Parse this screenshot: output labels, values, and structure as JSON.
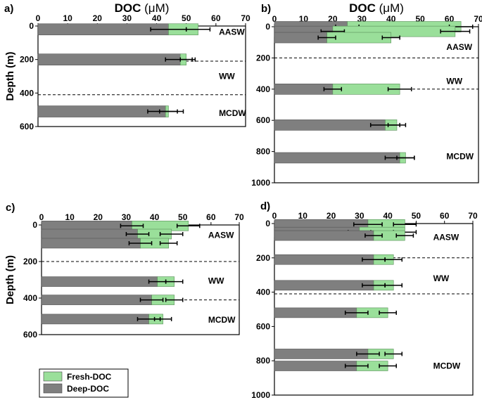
{
  "colors": {
    "fresh": "#9adf9a",
    "deep": "#7f7f7f",
    "axis": "#000000"
  },
  "legend": [
    {
      "label": "Fresh-DOC",
      "color": "#9adf9a"
    },
    {
      "label": "Deep-DOC",
      "color": "#7f7f7f"
    }
  ],
  "x_title_prefix": "DOC",
  "x_title_unit": "(μM)",
  "y_title": "Depth (m)",
  "chart_data": [
    {
      "panel": "a)",
      "type": "bar",
      "orientation": "horizontal",
      "stacked": true,
      "xlim": [
        0,
        70
      ],
      "ylim": [
        0,
        600
      ],
      "xticks": [
        0,
        10,
        20,
        30,
        40,
        50,
        60,
        70
      ],
      "yticks": [
        0,
        200,
        400,
        600
      ],
      "show_x_title": true,
      "show_y_title": true,
      "boundaries": [
        210,
        410
      ],
      "water_masses": [
        {
          "label": "AASW",
          "depth": 35
        },
        {
          "label": "WW",
          "depth": 300
        },
        {
          "label": "MCDW",
          "depth": 520
        }
      ],
      "bars": [
        {
          "depth": 20,
          "deep": 44,
          "fresh": 10,
          "err_deep": 6,
          "err_fresh": 4
        },
        {
          "depth": 200,
          "deep": 48,
          "fresh": 2,
          "err_deep": 5,
          "err_fresh": 2
        },
        {
          "depth": 510,
          "deep": 43,
          "fresh": 1,
          "err_deep": 6,
          "err_fresh": 3
        }
      ]
    },
    {
      "panel": "b)",
      "type": "bar",
      "orientation": "horizontal",
      "stacked": true,
      "xlim": [
        0,
        70
      ],
      "ylim": [
        0,
        1000
      ],
      "xticks": [
        0,
        10,
        20,
        30,
        40,
        50,
        60,
        70
      ],
      "yticks": [
        0,
        200,
        400,
        600,
        800,
        1000
      ],
      "show_x_title": true,
      "show_y_title": false,
      "boundaries": [
        200,
        400
      ],
      "water_masses": [
        {
          "label": "AASW",
          "depth": 130
        },
        {
          "label": "WW",
          "depth": 350
        },
        {
          "label": "MCDW",
          "depth": 830
        }
      ],
      "bars": [
        {
          "depth": 0,
          "deep": 25,
          "fresh": 39,
          "err_deep": 4,
          "err_fresh": 4
        },
        {
          "depth": 30,
          "deep": 20,
          "fresh": 42,
          "err_deep": 4,
          "err_fresh": 5
        },
        {
          "depth": 70,
          "deep": 18,
          "fresh": 22,
          "err_deep": 3,
          "err_fresh": 3
        },
        {
          "depth": 400,
          "deep": 20,
          "fresh": 23,
          "err_deep": 3,
          "err_fresh": 4
        },
        {
          "depth": 630,
          "deep": 38,
          "fresh": 4,
          "err_deep": 5,
          "err_fresh": 3
        },
        {
          "depth": 840,
          "deep": 43,
          "fresh": 2,
          "err_deep": 5,
          "err_fresh": 3
        }
      ]
    },
    {
      "panel": "c)",
      "type": "bar",
      "orientation": "horizontal",
      "stacked": true,
      "xlim": [
        0,
        70
      ],
      "ylim": [
        0,
        600
      ],
      "xticks": [
        0,
        10,
        20,
        30,
        40,
        50,
        60,
        70
      ],
      "yticks": [
        0,
        200,
        400,
        600
      ],
      "show_x_title": false,
      "show_y_title": true,
      "boundaries": [
        200,
        410
      ],
      "water_masses": [
        {
          "label": "AASW",
          "depth": 55
        },
        {
          "label": "WW",
          "depth": 305
        },
        {
          "label": "MCDW",
          "depth": 520
        }
      ],
      "bars": [
        {
          "depth": 5,
          "deep": 32,
          "fresh": 20,
          "err_deep": 4,
          "err_fresh": 4
        },
        {
          "depth": 50,
          "deep": 34,
          "fresh": 12,
          "err_deep": 4,
          "err_fresh": 4
        },
        {
          "depth": 100,
          "deep": 35,
          "fresh": 10,
          "err_deep": 4,
          "err_fresh": 3
        },
        {
          "depth": 310,
          "deep": 41,
          "fresh": 6,
          "err_deep": 3,
          "err_fresh": 3
        },
        {
          "depth": 410,
          "deep": 39,
          "fresh": 8,
          "err_deep": 4,
          "err_fresh": 3
        },
        {
          "depth": 515,
          "deep": 38,
          "fresh": 5,
          "err_deep": 4,
          "err_fresh": 3
        }
      ]
    },
    {
      "panel": "d)",
      "type": "bar",
      "orientation": "horizontal",
      "stacked": true,
      "xlim": [
        0,
        70
      ],
      "ylim": [
        0,
        1000
      ],
      "xticks": [
        0,
        10,
        20,
        30,
        40,
        50,
        60,
        70
      ],
      "yticks": [
        0,
        200,
        400,
        600,
        800,
        1000
      ],
      "show_x_title": false,
      "show_y_title": false,
      "boundaries": [
        200,
        410
      ],
      "water_masses": [
        {
          "label": "AASW",
          "depth": 80
        },
        {
          "label": "WW",
          "depth": 320
        },
        {
          "label": "MCDW",
          "depth": 830
        }
      ],
      "bars": [
        {
          "depth": 5,
          "deep": 33,
          "fresh": 13,
          "err_deep": 5,
          "err_fresh": 4
        },
        {
          "depth": 50,
          "deep": 30,
          "fresh": 16,
          "err_deep": 4,
          "err_fresh": 4
        },
        {
          "depth": 70,
          "deep": 35,
          "fresh": 11,
          "err_deep": 3,
          "err_fresh": 3
        },
        {
          "depth": 210,
          "deep": 35,
          "fresh": 7,
          "err_deep": 4,
          "err_fresh": 3
        },
        {
          "depth": 360,
          "deep": 35,
          "fresh": 7,
          "err_deep": 4,
          "err_fresh": 3
        },
        {
          "depth": 520,
          "deep": 29,
          "fresh": 11,
          "err_deep": 4,
          "err_fresh": 3
        },
        {
          "depth": 760,
          "deep": 33,
          "fresh": 9,
          "err_deep": 4,
          "err_fresh": 3
        },
        {
          "depth": 830,
          "deep": 29,
          "fresh": 11,
          "err_deep": 4,
          "err_fresh": 3
        }
      ]
    }
  ]
}
